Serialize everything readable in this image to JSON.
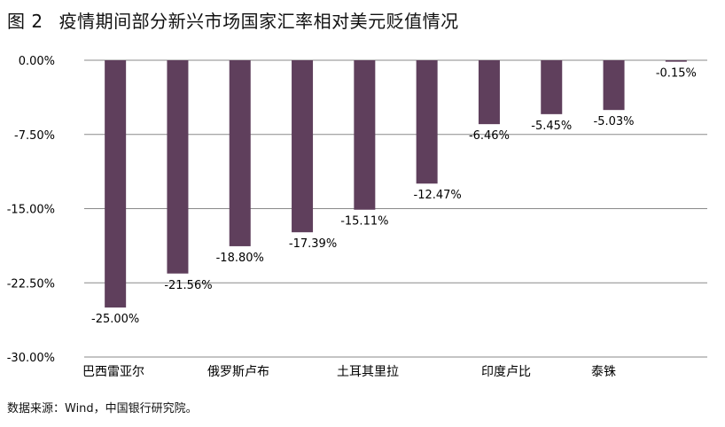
{
  "figure_label": "图 2",
  "chart_data": {
    "type": "bar",
    "title": "疫情期间部分新兴市场国家汇率相对美元贬值情况",
    "xlabel": "",
    "ylabel": "",
    "ylim": [
      -30,
      0
    ],
    "yticks": [
      0,
      -7.5,
      -15,
      -22.5,
      -30
    ],
    "ytick_labels": [
      "0.00%",
      "-7.50%",
      "-15.00%",
      "-22.50%",
      "-30.00%"
    ],
    "grid": true,
    "bar_color": "#5f3f5c",
    "values": [
      -25.0,
      -21.56,
      -18.8,
      -17.39,
      -15.11,
      -12.47,
      -6.46,
      -5.45,
      -5.03,
      -0.15
    ],
    "data_labels": [
      "-25.00%",
      "-21.56%",
      "-18.80%",
      "-17.39%",
      "-15.11%",
      "-12.47%",
      "-6.46%",
      "-5.45%",
      "-5.03%",
      "-0.15%"
    ],
    "category_labels": [
      "巴西雷亚尔",
      "俄罗斯卢布",
      "土耳其里拉",
      "印度卢比",
      "泰铢"
    ]
  },
  "source": "数据来源：Wind，中国银行研究院。"
}
